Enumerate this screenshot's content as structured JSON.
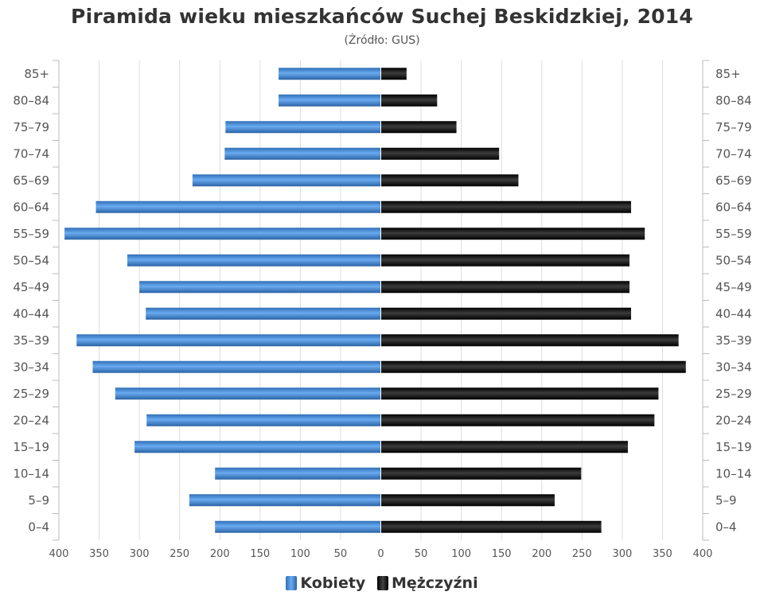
{
  "chart_data": {
    "type": "bar",
    "orientation": "horizontal-population-pyramid",
    "title": "Piramida wieku mieszkańców Suchej Beskidzkiej, 2014",
    "subtitle": "(Źródło: GUS)",
    "categories": [
      "85+",
      "80–84",
      "75–79",
      "70–74",
      "65–69",
      "60–64",
      "55–59",
      "50–54",
      "45–49",
      "40–44",
      "35–39",
      "30–34",
      "25–29",
      "20–24",
      "15–19",
      "10–14",
      "5–9",
      "0–4"
    ],
    "series": [
      {
        "name": "Kobiety",
        "side": "left",
        "color": "#4a8fd8",
        "values": [
          127,
          127,
          193,
          194,
          234,
          354,
          393,
          315,
          300,
          292,
          378,
          358,
          330,
          291,
          306,
          206,
          238,
          206
        ]
      },
      {
        "name": "Mężczyźni",
        "side": "right",
        "color": "#1a1a1a",
        "values": [
          32,
          70,
          94,
          147,
          171,
          311,
          328,
          309,
          309,
          311,
          370,
          379,
          345,
          340,
          307,
          249,
          216,
          274
        ]
      }
    ],
    "xlim": [
      -400,
      400
    ],
    "xticks": [
      "400",
      "350",
      "300",
      "250",
      "200",
      "150",
      "100",
      "50",
      "0",
      "50",
      "100",
      "150",
      "200",
      "250",
      "300",
      "350",
      "400"
    ],
    "grid": true,
    "legend_position": "bottom-center"
  }
}
